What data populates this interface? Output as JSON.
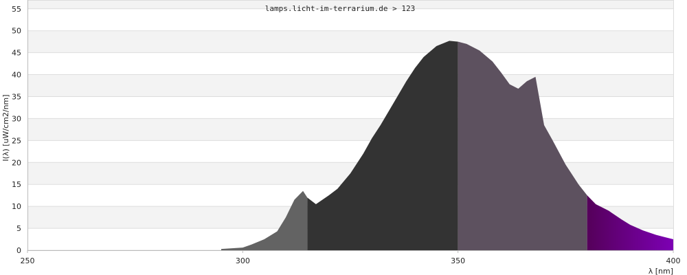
{
  "caption": "lamps.licht-im-terrarium.de > 123",
  "chart_data": {
    "type": "area",
    "title": "",
    "xlabel": "λ [nm]",
    "ylabel": "I(λ) [uW/cm2/nm]",
    "xlim": [
      250,
      400
    ],
    "ylim": [
      0,
      57
    ],
    "grid": true,
    "x_ticks": [
      250,
      300,
      350,
      400
    ],
    "y_ticks": [
      0,
      5,
      10,
      15,
      20,
      25,
      30,
      35,
      40,
      45,
      50,
      55
    ],
    "band_colors": {
      "uvc": "#5a5a5a",
      "uvb": "#636363",
      "uva2": "#333333",
      "uva1": "#5d515f",
      "violet_start": "#55005a",
      "violet_end": "#7d00b4"
    },
    "band_edges": [
      280,
      315,
      350,
      380,
      400
    ],
    "x": [
      295,
      300,
      302,
      305,
      308,
      310,
      312,
      314,
      315,
      317,
      320,
      322,
      325,
      328,
      330,
      332,
      335,
      338,
      340,
      342,
      345,
      348,
      350,
      352,
      355,
      358,
      360,
      362,
      364,
      366,
      368,
      370,
      372,
      375,
      378,
      380,
      382,
      385,
      388,
      390,
      393,
      396,
      398,
      400
    ],
    "y": [
      0.3,
      0.6,
      1.3,
      2.5,
      4.3,
      7.5,
      11.5,
      13.5,
      12.0,
      10.5,
      12.5,
      14.0,
      17.5,
      22.0,
      25.5,
      28.5,
      33.5,
      38.5,
      41.5,
      44.0,
      46.5,
      47.7,
      47.5,
      47.0,
      45.5,
      43.0,
      40.5,
      37.8,
      36.8,
      38.5,
      39.5,
      28.5,
      25.0,
      19.5,
      15.0,
      12.5,
      10.5,
      9.0,
      7.0,
      5.8,
      4.5,
      3.5,
      3.0,
      2.5
    ]
  }
}
